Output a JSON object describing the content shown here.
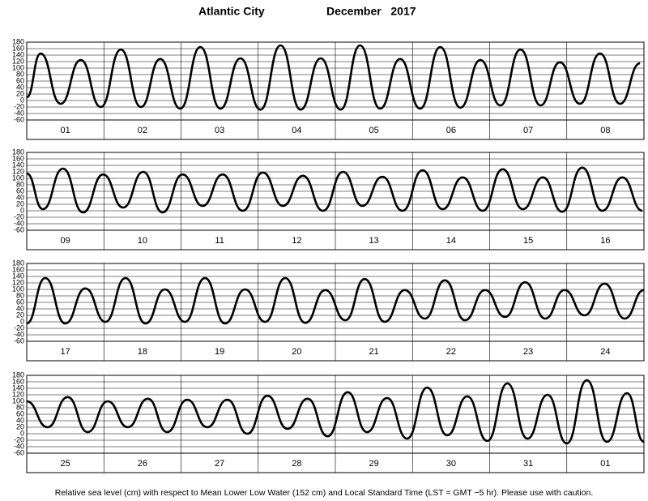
{
  "place": "Atlantic City",
  "period": "December   2017",
  "footnote": "Relative sea level (cm) with respect to Mean Lower Low Water (152 cm) and Local Standard Time (LST = GMT −5 hr). Please use with caution.",
  "chart_data": [
    {
      "type": "line",
      "categories": [
        "01",
        "02",
        "03",
        "04",
        "05",
        "06",
        "07",
        "08"
      ],
      "xlim": [
        0,
        8
      ],
      "ylim": [
        -60,
        180
      ],
      "yticks": [
        -60,
        -40,
        -20,
        0,
        20,
        40,
        60,
        80,
        100,
        120,
        140,
        160,
        180
      ],
      "grid": true,
      "color": "#000000",
      "x": [
        0,
        0.18,
        0.44,
        0.7,
        0.96,
        1.22,
        1.48,
        1.73,
        1.99,
        2.25,
        2.51,
        2.77,
        3.03,
        3.29,
        3.55,
        3.81,
        4.07,
        4.32,
        4.58,
        4.84,
        5.1,
        5.36,
        5.62,
        5.88,
        6.14,
        6.4,
        6.66,
        6.91,
        7.17,
        7.43,
        7.69,
        7.95
      ],
      "values": [
        10,
        145,
        -10,
        125,
        -20,
        157,
        -20,
        128,
        -25,
        165,
        -25,
        130,
        -28,
        170,
        -28,
        130,
        -28,
        170,
        -25,
        128,
        -25,
        165,
        -22,
        125,
        -15,
        157,
        -15,
        118,
        -10,
        145,
        -10,
        115
      ]
    },
    {
      "type": "line",
      "categories": [
        "09",
        "10",
        "11",
        "12",
        "13",
        "14",
        "15",
        "16"
      ],
      "xlim": [
        0,
        8
      ],
      "ylim": [
        -60,
        180
      ],
      "yticks": [
        -60,
        -40,
        -20,
        0,
        20,
        40,
        60,
        80,
        100,
        120,
        140,
        160,
        180
      ],
      "grid": true,
      "color": "#000000",
      "x": [
        0,
        0.21,
        0.47,
        0.73,
        0.99,
        1.25,
        1.51,
        1.76,
        2.02,
        2.28,
        2.54,
        2.8,
        3.06,
        3.32,
        3.58,
        3.84,
        4.1,
        4.35,
        4.61,
        4.87,
        5.13,
        5.39,
        5.65,
        5.91,
        6.17,
        6.43,
        6.69,
        6.94,
        7.2,
        7.46,
        7.72,
        7.98
      ],
      "values": [
        115,
        5,
        130,
        -5,
        112,
        10,
        120,
        -5,
        112,
        15,
        112,
        0,
        118,
        15,
        108,
        0,
        120,
        15,
        105,
        0,
        125,
        5,
        103,
        0,
        128,
        5,
        103,
        -3,
        133,
        0,
        103,
        0
      ]
    },
    {
      "type": "line",
      "categories": [
        "17",
        "18",
        "19",
        "20",
        "21",
        "22",
        "23",
        "24"
      ],
      "xlim": [
        0,
        8
      ],
      "ylim": [
        -60,
        180
      ],
      "yticks": [
        -60,
        -40,
        -20,
        0,
        20,
        40,
        60,
        80,
        100,
        120,
        140,
        160,
        180
      ],
      "grid": true,
      "color": "#000000",
      "x": [
        0,
        0.24,
        0.5,
        0.76,
        1.02,
        1.28,
        1.54,
        1.79,
        2.05,
        2.31,
        2.57,
        2.83,
        3.09,
        3.35,
        3.61,
        3.87,
        4.13,
        4.38,
        4.64,
        4.9,
        5.16,
        5.42,
        5.68,
        5.94,
        6.2,
        6.46,
        6.72,
        6.97,
        7.23,
        7.49,
        7.75,
        8
      ],
      "values": [
        -5,
        135,
        -5,
        103,
        0,
        135,
        -5,
        100,
        0,
        135,
        -5,
        100,
        0,
        135,
        -3,
        98,
        5,
        132,
        0,
        98,
        10,
        128,
        5,
        98,
        15,
        122,
        10,
        98,
        20,
        118,
        10,
        98
      ]
    },
    {
      "type": "line",
      "categories": [
        "25",
        "26",
        "27",
        "28",
        "29",
        "30",
        "31",
        "01"
      ],
      "xlim": [
        0,
        8
      ],
      "ylim": [
        -60,
        180
      ],
      "yticks": [
        -60,
        -40,
        -20,
        0,
        20,
        40,
        60,
        80,
        100,
        120,
        140,
        160,
        180
      ],
      "grid": true,
      "color": "#000000",
      "x": [
        0,
        0.27,
        0.53,
        0.79,
        1.05,
        1.31,
        1.57,
        1.82,
        2.08,
        2.34,
        2.6,
        2.86,
        3.12,
        3.38,
        3.64,
        3.9,
        4.16,
        4.41,
        4.67,
        4.93,
        5.19,
        5.45,
        5.71,
        5.97,
        6.23,
        6.49,
        6.75,
        7.0,
        7.26,
        7.52,
        7.78,
        8
      ],
      "values": [
        100,
        20,
        113,
        5,
        100,
        20,
        108,
        5,
        105,
        20,
        105,
        0,
        117,
        15,
        108,
        -8,
        128,
        5,
        110,
        -15,
        142,
        -5,
        115,
        -22,
        155,
        -15,
        120,
        -30,
        165,
        -25,
        125,
        -25
      ]
    }
  ]
}
